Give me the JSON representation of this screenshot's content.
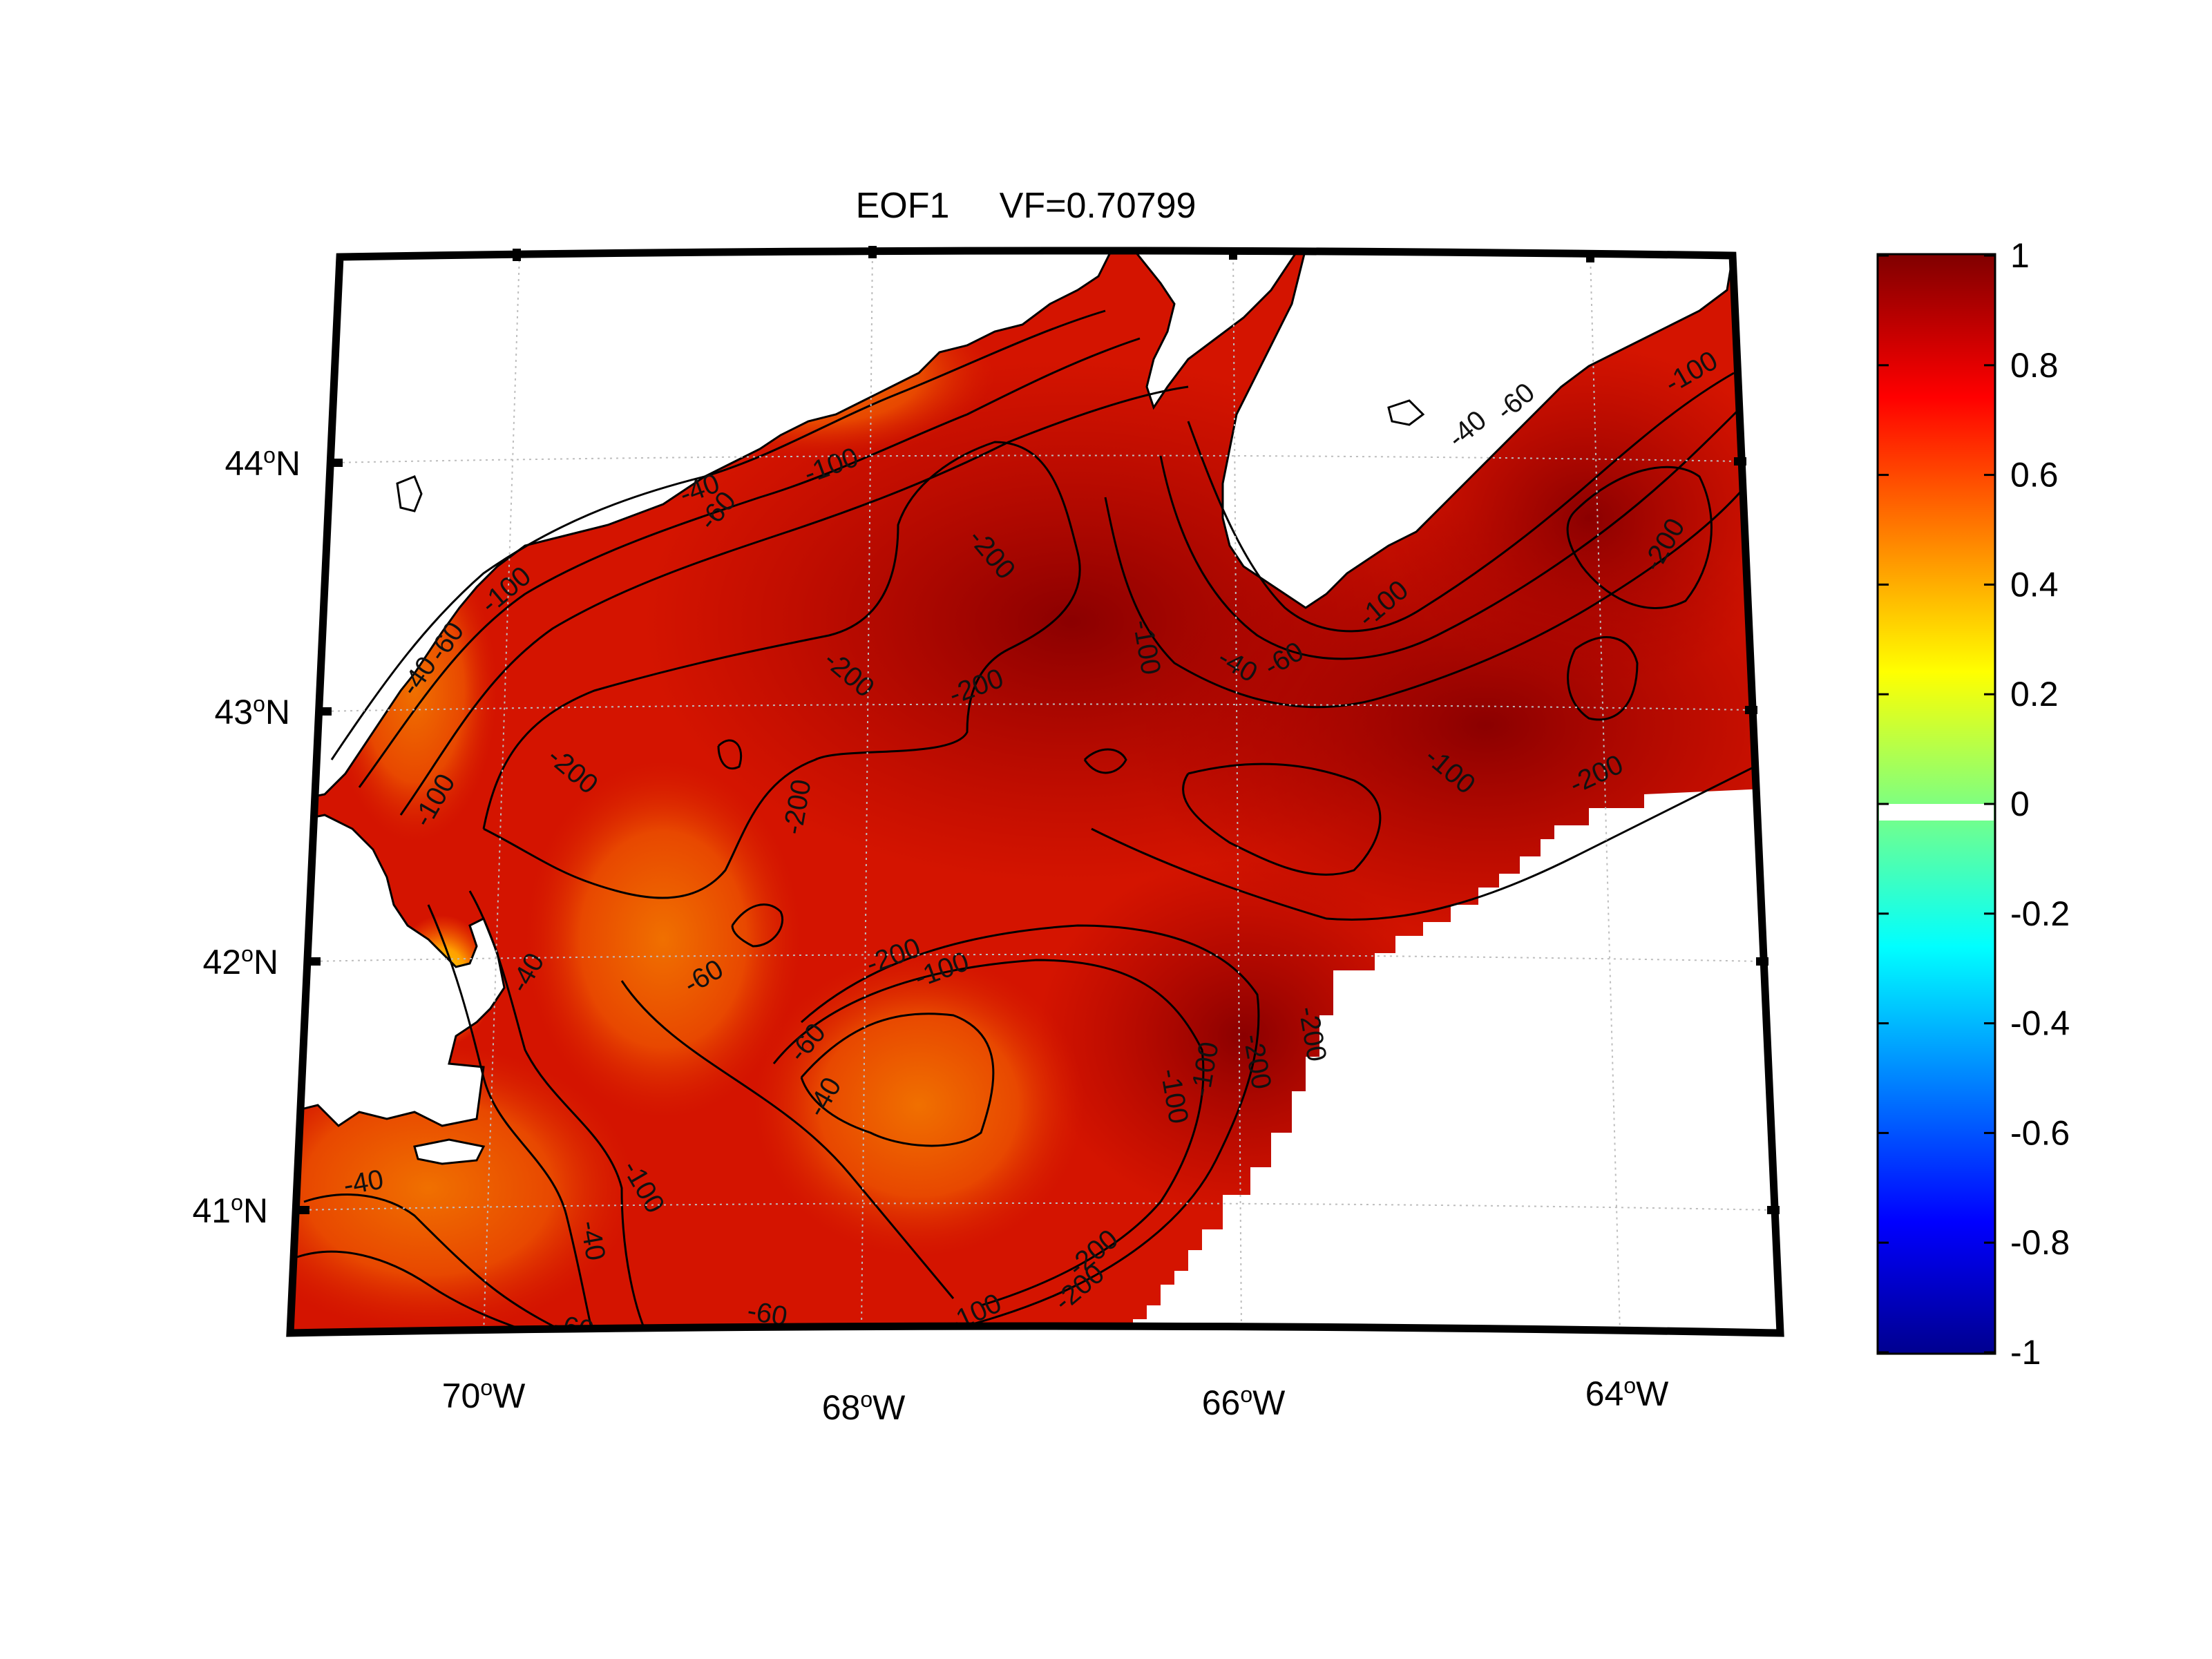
{
  "title": "EOF1     VF=0.70799",
  "map": {
    "lon_ticks": [
      {
        "value": -70,
        "deg": "70",
        "hemi": "W"
      },
      {
        "value": -68,
        "deg": "68",
        "hemi": "W"
      },
      {
        "value": -66,
        "deg": "66",
        "hemi": "W"
      },
      {
        "value": -64,
        "deg": "64",
        "hemi": "W"
      }
    ],
    "lat_ticks": [
      {
        "value": 44,
        "deg": "44",
        "hemi": "N"
      },
      {
        "value": 43,
        "deg": "43",
        "hemi": "N"
      },
      {
        "value": 42,
        "deg": "42",
        "hemi": "N"
      },
      {
        "value": 41,
        "deg": "41",
        "hemi": "N"
      }
    ],
    "contour_labels": [
      "-40",
      "-60",
      "-100",
      "-200",
      "-40",
      "-60",
      "-100",
      "-200",
      "-200",
      "-200",
      "-200",
      "-100",
      "-60",
      "-40",
      "-100",
      "-200",
      "-60",
      "-40",
      "-100",
      "-200",
      "-100",
      "-60",
      "-40",
      "-200",
      "-100",
      "-200",
      "-100",
      "-100",
      "-60",
      "-40",
      "-100",
      "-200",
      "-200",
      "-60",
      "-100",
      "-40",
      "-40",
      "-60",
      "-100",
      "-200"
    ],
    "grid": "dotted gray",
    "land_color": "#ffffff",
    "coastline_color": "#000000"
  },
  "colorbar": {
    "min": -1,
    "max": 1,
    "tick_labels": [
      "1",
      "0.8",
      "0.6",
      "0.4",
      "0.2",
      "0",
      "-0.2",
      "-0.4",
      "-0.6",
      "-0.8",
      "-1"
    ],
    "colormap": "jet",
    "gap_at": "0",
    "gap_color": "#ffffff"
  }
}
